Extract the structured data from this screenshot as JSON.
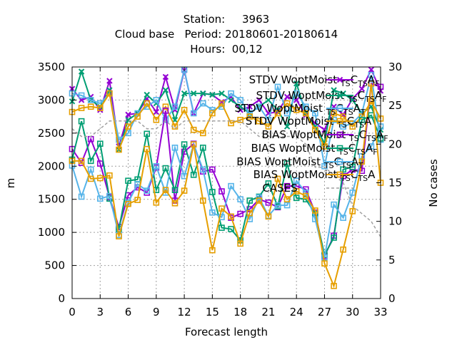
{
  "chart_data": {
    "type": "line",
    "title_lines": [
      "Station:     3963",
      "Cloud base   Period: 20180601-20180614",
      "Hours:  00,12"
    ],
    "xlabel": "Forecast length",
    "ylabel": "m",
    "y2label": "No cases",
    "xlim": [
      0,
      33
    ],
    "ylim": [
      0,
      3500
    ],
    "y2lim": [
      0,
      30
    ],
    "xticks": [
      0,
      3,
      6,
      9,
      12,
      15,
      18,
      21,
      24,
      27,
      30,
      33
    ],
    "yticks": [
      0,
      500,
      1000,
      1500,
      2000,
      2500,
      3000,
      3500
    ],
    "y2ticks": [
      0,
      5,
      10,
      15,
      20,
      25,
      30
    ],
    "grid": true,
    "legend_position": "top-right, inside",
    "x": [
      0,
      1,
      2,
      3,
      4,
      5,
      6,
      7,
      8,
      9,
      10,
      11,
      12,
      13,
      14,
      15,
      16,
      17,
      18,
      19,
      20,
      21,
      22,
      23,
      24,
      25,
      26,
      27,
      28,
      29,
      30,
      31,
      32,
      33
    ],
    "series": [
      {
        "name": "STDV WoptMoist_TS C_TS A_F",
        "legend_base": "STDV WoptMoist",
        "legend_sub1": "TS",
        "legend_mid": "C",
        "legend_sub2": "TS",
        "legend_end": "A",
        "legend_sub3": "F",
        "stat": "STDV",
        "color": "#9400d3",
        "marker": "x",
        "values": [
          3170,
          3000,
          3050,
          2850,
          3290,
          2300,
          2780,
          2800,
          3020,
          2820,
          3350,
          2850,
          3450,
          2800,
          3100,
          3080,
          2970,
          3050,
          2850,
          2900,
          3000,
          2800,
          2820,
          3050,
          3000,
          2770,
          2650,
          2550,
          2900,
          2780,
          3020,
          3170,
          3460,
          3140
        ]
      },
      {
        "name": "STDV WoptMoist_TS C_TS A_F (2)",
        "legend_base": "STDV WoptMoist",
        "legend_sub1": "TS",
        "legend_mid": "C",
        "legend_sub2": "TS",
        "legend_end": "A",
        "legend_sub3": "F",
        "stat": "STDV",
        "color": "#009e73",
        "marker": "x",
        "values": [
          2980,
          3430,
          3000,
          2900,
          3150,
          2250,
          2700,
          2800,
          3080,
          2950,
          3150,
          2700,
          3100,
          3100,
          3100,
          3080,
          3100,
          3000,
          2900,
          2800,
          2900,
          3000,
          2850,
          2600,
          3250,
          2800,
          2600,
          2350,
          3150,
          3100,
          3000,
          2800,
          2900,
          2550
        ]
      },
      {
        "name": "STDV WoptMoist_TS C_TS A_T",
        "legend_base": "STDV WoptMoist",
        "legend_sub1": "TS",
        "legend_mid": "C",
        "legend_sub2": "TS",
        "legend_end": "A",
        "legend_sub3": "T",
        "stat": "STDV",
        "color": "#56b4e9",
        "marker": "square",
        "values": [
          3100,
          3070,
          3000,
          2950,
          3100,
          2400,
          2500,
          2800,
          2900,
          3000,
          2700,
          2900,
          3460,
          2800,
          2950,
          2850,
          2900,
          3100,
          3000,
          2800,
          2900,
          2700,
          3200,
          2800,
          3100,
          2900,
          2800,
          2000,
          2700,
          2600,
          2650,
          2800,
          3380,
          2400
        ]
      },
      {
        "name": "STDV WoptMoist_TS C_TS A",
        "legend_base": "STDV WoptMoist",
        "legend_sub1": "TS",
        "legend_mid": "C",
        "legend_sub2": "TS",
        "legend_end": "A",
        "legend_sub3": "",
        "stat": "STDV",
        "color": "#e69f00",
        "marker": "square",
        "values": [
          2820,
          2880,
          2900,
          2880,
          3100,
          2250,
          2600,
          2750,
          2950,
          2700,
          2900,
          2600,
          2850,
          2550,
          2500,
          2800,
          2950,
          2650,
          2700,
          2750,
          2680,
          2600,
          2800,
          2950,
          2850,
          2800,
          2550,
          2300,
          2800,
          2750,
          2600,
          2750,
          2980,
          2720
        ]
      },
      {
        "name": "BIAS WoptMoist_TS C_TS A_F",
        "legend_base": "BIAS WoptMoist",
        "legend_sub1": "TS",
        "legend_mid": "C",
        "legend_sub2": "TS",
        "legend_end": "A",
        "legend_sub3": "F",
        "stat": "BIAS",
        "color": "#9400d3",
        "marker": "square",
        "values": [
          2260,
          2050,
          2410,
          2040,
          1530,
          1080,
          1560,
          1680,
          1600,
          1980,
          2840,
          1480,
          2220,
          2340,
          1920,
          1950,
          1620,
          1220,
          1280,
          1350,
          1500,
          1450,
          1380,
          1700,
          1700,
          1650,
          1300,
          640,
          950,
          1850,
          1950,
          1930,
          3250,
          3200
        ]
      },
      {
        "name": "BIAS WoptMoist_TS C_TS A_F (2)",
        "legend_base": "BIAS WoptMoist",
        "legend_sub1": "TS",
        "legend_mid": "C",
        "legend_sub2": "TS",
        "legend_end": "A",
        "legend_sub3": "F",
        "stat": "BIAS",
        "color": "#009e73",
        "marker": "square",
        "values": [
          2100,
          2680,
          2080,
          2340,
          1510,
          1050,
          1780,
          1800,
          2490,
          1640,
          1970,
          1640,
          2330,
          1870,
          2280,
          1610,
          1070,
          1050,
          880,
          1480,
          1540,
          1740,
          1390,
          2040,
          1520,
          1500,
          1280,
          660,
          920,
          1950,
          1990,
          2700,
          2770,
          2420
        ]
      },
      {
        "name": "BIAS WoptMoist_TS C_TS A_T",
        "legend_base": "BIAS WoptMoist",
        "legend_sub1": "TS",
        "legend_mid": "C",
        "legend_sub2": "TS",
        "legend_end": "A",
        "legend_sub3": "T",
        "stat": "BIAS",
        "color": "#56b4e9",
        "marker": "square",
        "values": [
          2010,
          1540,
          1950,
          1510,
          1550,
          960,
          1450,
          1730,
          1630,
          2000,
          1600,
          2280,
          1850,
          2330,
          1950,
          1300,
          1230,
          1700,
          1500,
          1200,
          1530,
          1250,
          1410,
          1410,
          1780,
          1600,
          1200,
          620,
          1420,
          1220,
          1600,
          2150,
          2300,
          2600
        ]
      },
      {
        "name": "BIAS WoptMoist_TS C_TS A",
        "legend_base": "BIAS WoptMoist",
        "legend_sub1": "TS",
        "legend_mid": "C",
        "legend_sub2": "TS",
        "legend_end": "A",
        "legend_sub3": "",
        "stat": "BIAS",
        "color": "#e69f00",
        "marker": "square",
        "values": [
          2080,
          2080,
          1810,
          1820,
          1860,
          940,
          1430,
          1490,
          2260,
          1450,
          1640,
          1440,
          1630,
          2330,
          1480,
          730,
          1360,
          1240,
          830,
          1290,
          1480,
          1240,
          1810,
          1500,
          1620,
          1550,
          1330,
          530,
          190,
          740,
          1320,
          2070,
          3250,
          1750
        ]
      },
      {
        "name": "CASES",
        "legend_label": "CASES",
        "stat": "CASES",
        "color": "#a0a0a0",
        "marker": "none",
        "axis": "y2",
        "values": [
          22,
          21,
          21,
          22,
          23,
          23,
          23,
          23,
          22,
          22,
          23,
          22,
          23,
          23,
          23,
          23,
          23,
          23,
          23,
          22,
          21,
          21,
          21,
          21,
          21,
          20,
          17,
          17,
          16,
          15,
          12,
          11,
          10,
          8
        ]
      }
    ]
  }
}
